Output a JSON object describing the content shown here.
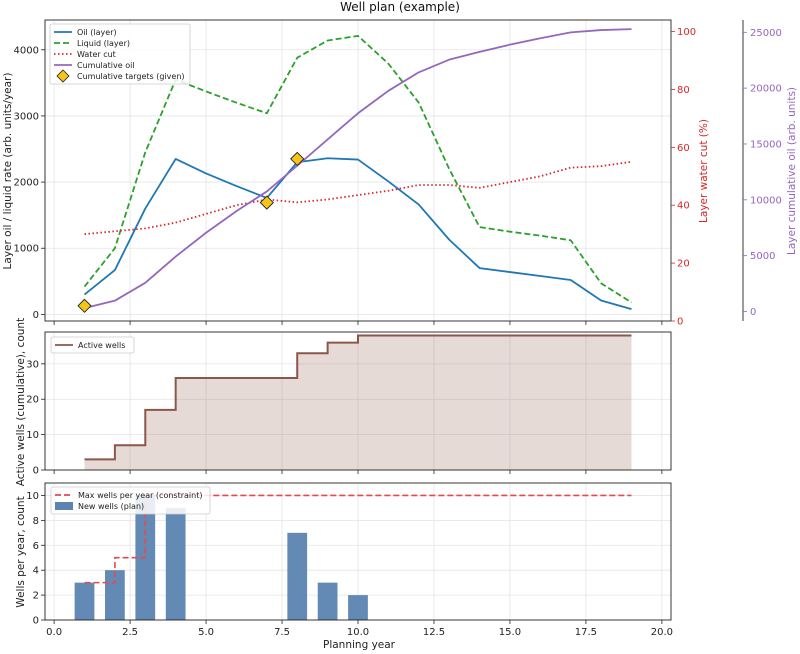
{
  "chart_data": [
    {
      "type": "line",
      "title": "Well plan (example)",
      "xlim": [
        -0.3,
        20.3
      ],
      "ylabel": "Layer oil / liquid rate (arb. units/year)",
      "ylim": [
        -100,
        4450
      ],
      "yticks": [
        0,
        1000,
        2000,
        3000,
        4000
      ],
      "y2label": "Layer water cut (%)",
      "y2lim": [
        0,
        104
      ],
      "y2ticks": [
        0,
        20,
        40,
        60,
        80,
        100
      ],
      "y3label": "Layer cumulative oil (arb. units)",
      "y3lim": [
        -850,
        26100
      ],
      "y3ticks": [
        0,
        5000,
        10000,
        15000,
        20000,
        25000
      ],
      "grid": true,
      "legend_position": "top-left",
      "series": [
        {
          "name": "Oil (layer)",
          "axis": "left",
          "style": "solid",
          "color": "#1f77b4",
          "x": [
            1,
            2,
            3,
            4,
            5,
            6,
            7,
            8,
            9,
            10,
            11,
            12,
            13,
            14,
            15,
            16,
            17,
            18,
            19
          ],
          "y": [
            300,
            670,
            1600,
            2350,
            2130,
            1940,
            1760,
            2300,
            2360,
            2340,
            2010,
            1660,
            1130,
            700,
            640,
            580,
            520,
            210,
            80
          ]
        },
        {
          "name": "Liquid (layer)",
          "axis": "left",
          "style": "dashed",
          "color": "#2ca02c",
          "x": [
            1,
            2,
            3,
            4,
            5,
            6,
            7,
            8,
            9,
            10,
            11,
            12,
            13,
            14,
            15,
            16,
            17,
            18,
            19
          ],
          "y": [
            420,
            1000,
            2450,
            3550,
            3370,
            3200,
            3040,
            3880,
            4140,
            4210,
            3790,
            3200,
            2200,
            1320,
            1250,
            1190,
            1120,
            470,
            180
          ]
        },
        {
          "name": "Water cut",
          "axis": "right",
          "style": "dotted",
          "color": "#d62728",
          "x": [
            1,
            2,
            3,
            4,
            5,
            6,
            7,
            8,
            9,
            10,
            11,
            12,
            13,
            14,
            15,
            16,
            17,
            18,
            19
          ],
          "y": [
            30,
            31,
            32,
            34,
            37,
            40,
            42,
            41,
            42,
            43.5,
            45,
            47,
            47,
            46,
            48,
            50,
            53,
            53.5,
            55
          ]
        },
        {
          "name": "Cumulative oil",
          "axis": "right2",
          "style": "solid",
          "color": "#9467bd",
          "x": [
            1,
            2,
            3,
            4,
            5,
            6,
            7,
            8,
            9,
            10,
            11,
            12,
            13,
            14,
            15,
            16,
            17,
            18,
            19
          ],
          "y": [
            300,
            970,
            2570,
            4920,
            7050,
            8990,
            10750,
            13050,
            15410,
            17750,
            19760,
            21420,
            22550,
            23250,
            23890,
            24470,
            24990,
            25200,
            25280
          ]
        }
      ],
      "markers": {
        "name": "Cumulative targets (given)",
        "axis": "left",
        "color": "#f5c518",
        "x": [
          1,
          7,
          8
        ],
        "y": [
          130,
          1690,
          2350
        ]
      }
    },
    {
      "type": "area",
      "ylabel": "Active wells (cumulative), count",
      "ylim": [
        0,
        39
      ],
      "yticks": [
        0,
        10,
        20,
        30
      ],
      "grid": true,
      "legend_position": "top-left",
      "series": [
        {
          "name": "Active wells",
          "color": "#8c564b",
          "x": [
            1,
            2,
            3,
            4,
            5,
            6,
            7,
            8,
            9,
            10,
            11,
            12,
            13,
            14,
            15,
            16,
            17,
            18,
            19
          ],
          "y": [
            3,
            7,
            17,
            26,
            26,
            26,
            26,
            33,
            36,
            38,
            38,
            38,
            38,
            38,
            38,
            38,
            38,
            38,
            38
          ]
        }
      ]
    },
    {
      "type": "bar",
      "xlabel": "Planning year",
      "ylabel": "Wells per year, count",
      "ylim": [
        0,
        11
      ],
      "yticks": [
        0,
        2,
        4,
        6,
        8,
        10
      ],
      "xticks": [
        "0.0",
        "2.5",
        "5.0",
        "7.5",
        "10.0",
        "12.5",
        "15.0",
        "17.5",
        "20.0"
      ],
      "grid": true,
      "legend_position": "top-left",
      "bars": {
        "name": "New wells (plan)",
        "color": "#5b84b1",
        "x": [
          1,
          2,
          3,
          4,
          5,
          6,
          7,
          8,
          9,
          10
        ],
        "y": [
          3,
          4,
          10,
          9,
          0,
          0,
          0,
          7,
          3,
          2
        ]
      },
      "constraint": {
        "name": "Max wells per year (constraint)",
        "color": "#e8474b",
        "x": [
          1,
          2,
          3,
          19
        ],
        "y": [
          3,
          5,
          10,
          10
        ]
      }
    }
  ]
}
